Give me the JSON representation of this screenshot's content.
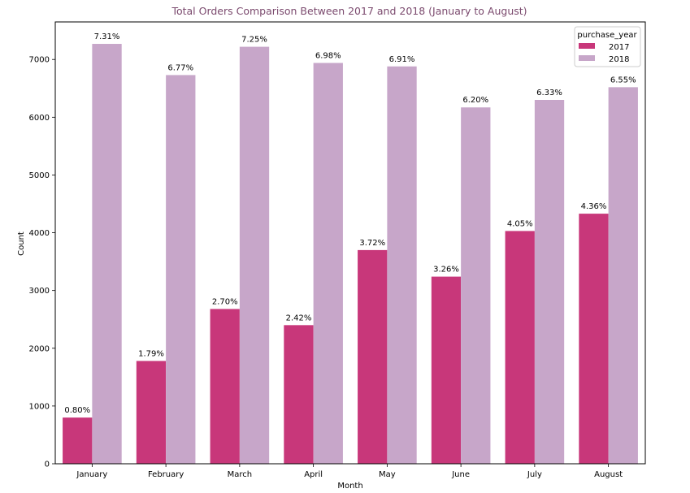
{
  "chart_data": {
    "type": "bar",
    "title": "Total Orders Comparison Between 2017 and 2018 (January to August)",
    "xlabel": "Month",
    "ylabel": "Count",
    "ylim": [
      0,
      7650
    ],
    "yticks": [
      0,
      1000,
      2000,
      3000,
      4000,
      5000,
      6000,
      7000
    ],
    "grid": false,
    "categories": [
      "January",
      "February",
      "March",
      "April",
      "May",
      "June",
      "July",
      "August"
    ],
    "legend": {
      "title": "purchase_year",
      "placement": "top-right"
    },
    "series": [
      {
        "name": "2017",
        "color": "#c8377a",
        "values": [
          800,
          1780,
          2680,
          2400,
          3700,
          3240,
          4030,
          4330
        ],
        "labels": [
          "0.80%",
          "1.79%",
          "2.70%",
          "2.42%",
          "3.72%",
          "3.26%",
          "4.05%",
          "4.36%"
        ]
      },
      {
        "name": "2018",
        "color": "#c7a6c9",
        "values": [
          7270,
          6730,
          7220,
          6940,
          6880,
          6170,
          6300,
          6520
        ],
        "labels": [
          "7.31%",
          "6.77%",
          "7.25%",
          "6.98%",
          "6.91%",
          "6.20%",
          "6.33%",
          "6.55%"
        ]
      }
    ],
    "title_color": "#7b4a6e"
  }
}
